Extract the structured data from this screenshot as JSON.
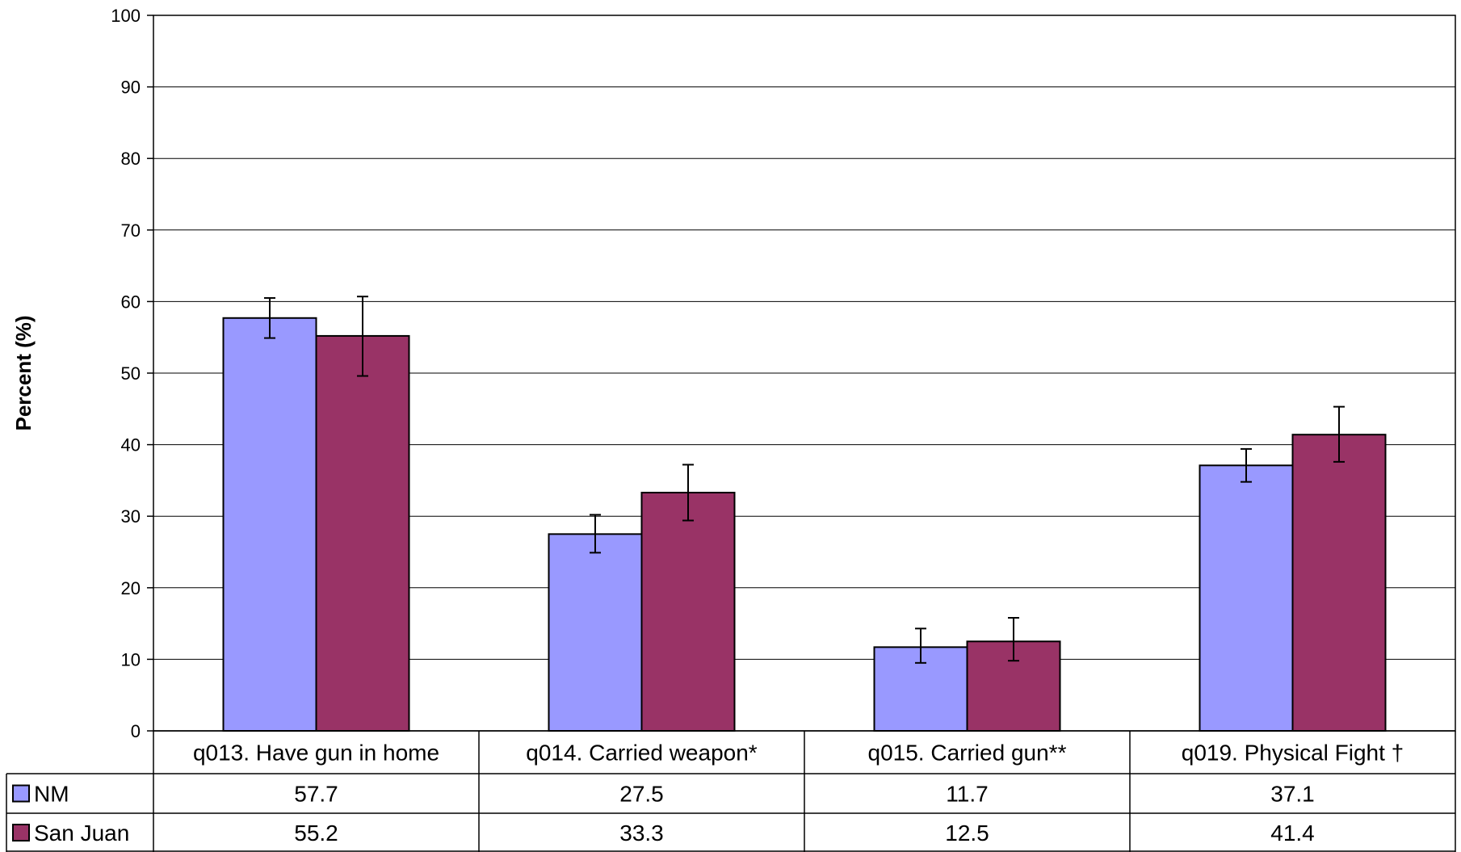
{
  "chart_data": {
    "type": "bar",
    "ylabel": "Percent (%)",
    "ylim": [
      0,
      100
    ],
    "yticks": [
      0,
      10,
      20,
      30,
      40,
      50,
      60,
      70,
      80,
      90,
      100
    ],
    "grid": true,
    "categories": [
      "q013. Have gun in home",
      "q014. Carried weapon*",
      "q015. Carried gun**",
      "q019. Physical Fight †"
    ],
    "series": [
      {
        "name": "NM",
        "color": "#9999ff",
        "values": [
          57.7,
          27.5,
          11.7,
          37.1
        ],
        "ci_low": [
          54.9,
          24.9,
          9.5,
          34.8
        ],
        "ci_high": [
          60.5,
          30.2,
          14.3,
          39.4
        ],
        "value_labels": [
          "57.7",
          "27.5",
          "11.7",
          "37.1"
        ]
      },
      {
        "name": "San Juan",
        "color": "#993366",
        "values": [
          55.2,
          33.3,
          12.5,
          41.4
        ],
        "ci_low": [
          49.6,
          29.4,
          9.8,
          37.6
        ],
        "ci_high": [
          60.7,
          37.2,
          15.8,
          45.3
        ],
        "value_labels": [
          "55.2",
          "33.3",
          "12.5",
          "41.4"
        ]
      }
    ],
    "legend": "data-table-left"
  }
}
